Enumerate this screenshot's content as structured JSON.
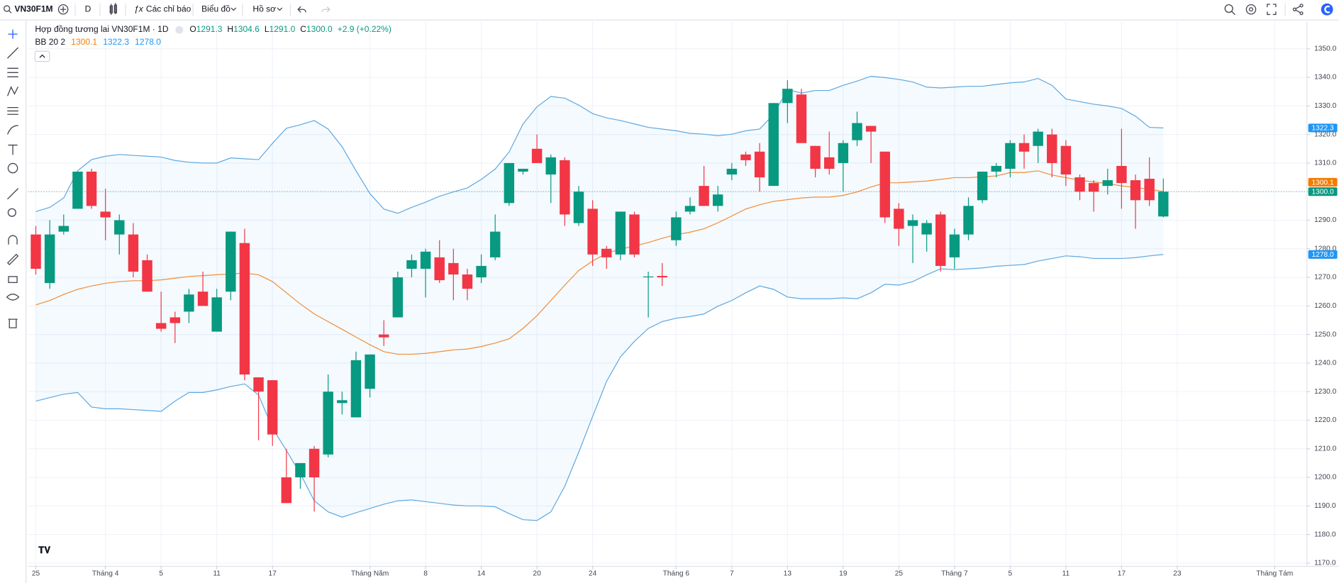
{
  "toolbar": {
    "symbol": "VN30F1M",
    "interval": "D",
    "indicators": "Các chỉ báo",
    "chart_menu": "Biểu đồ",
    "profile": "Hồ sơ"
  },
  "legend": {
    "title": "Hợp đồng tương lai VN30F1M · 1D",
    "ohlc_labels": [
      "O",
      "H",
      "L",
      "C"
    ],
    "ohlc_values": [
      "1291.3",
      "1304.6",
      "1291.0",
      "1300.0"
    ],
    "change": "+2.9 (+0.22%)",
    "bb_label": "BB 20 2",
    "bb_values": [
      "1300.1",
      "1322.3",
      "1278.0"
    ]
  },
  "chart_data": {
    "type": "candlestick",
    "up_color": "#089981",
    "down_color": "#f23645",
    "grid": true,
    "xlim": [
      -0.55,
      91.29
    ],
    "ylim": [
      1169,
      1359.6
    ],
    "xticks": [
      {
        "value": 0,
        "label": "25"
      },
      {
        "value": 5,
        "label": "Tháng 4"
      },
      {
        "value": 9,
        "label": "5"
      },
      {
        "value": 13,
        "label": "11"
      },
      {
        "value": 17,
        "label": "17"
      },
      {
        "value": 24,
        "label": "Tháng Năm"
      },
      {
        "value": 28,
        "label": "8"
      },
      {
        "value": 32,
        "label": "14"
      },
      {
        "value": 36,
        "label": "20"
      },
      {
        "value": 40,
        "label": "24"
      },
      {
        "value": 46,
        "label": "Tháng 6"
      },
      {
        "value": 50,
        "label": "7"
      },
      {
        "value": 54,
        "label": "13"
      },
      {
        "value": 58,
        "label": "19"
      },
      {
        "value": 62,
        "label": "25"
      },
      {
        "value": 66,
        "label": "Tháng 7"
      },
      {
        "value": 70,
        "label": "5"
      },
      {
        "value": 74,
        "label": "11"
      },
      {
        "value": 78,
        "label": "17"
      },
      {
        "value": 82,
        "label": "23"
      },
      {
        "value": 89,
        "label": "Tháng Tám"
      }
    ],
    "yticks": [
      {
        "value": 1170,
        "label": "1170.0"
      },
      {
        "value": 1180,
        "label": "1180.0"
      },
      {
        "value": 1190,
        "label": "1190.0"
      },
      {
        "value": 1200,
        "label": "1200.0"
      },
      {
        "value": 1210,
        "label": "1210.0"
      },
      {
        "value": 1220,
        "label": "1220.0"
      },
      {
        "value": 1230,
        "label": "1230.0"
      },
      {
        "value": 1240,
        "label": "1240.0"
      },
      {
        "value": 1250,
        "label": "1250.0"
      },
      {
        "value": 1260,
        "label": "1260.0"
      },
      {
        "value": 1270,
        "label": "1270.0"
      },
      {
        "value": 1280,
        "label": "1280.0"
      },
      {
        "value": 1290,
        "label": "1290.0"
      },
      {
        "value": 1300,
        "label": "1300.0"
      },
      {
        "value": 1310,
        "label": "1310.0"
      },
      {
        "value": 1320,
        "label": "1320.0"
      },
      {
        "value": 1330,
        "label": "1330.0"
      },
      {
        "value": 1340,
        "label": "1340.0"
      },
      {
        "value": 1350,
        "label": "1350.0"
      }
    ],
    "open": [
      1285,
      1268,
      1286,
      1294,
      1307,
      1293,
      1285,
      1285,
      1276,
      1254,
      1256,
      1258,
      1265,
      1251,
      1265,
      1282,
      1235,
      1234,
      1200,
      1200,
      1210,
      1208,
      1226,
      1221,
      1231,
      1250,
      1256,
      1273,
      1273,
      1277,
      1275,
      1271,
      1270,
      1277,
      1296,
      1307,
      1315,
      1306,
      1311,
      1289,
      1294,
      1280,
      1278,
      1292,
      1270,
      1270.5,
      1283,
      1293,
      1302,
      1295,
      1306,
      1313,
      1314,
      1302,
      1331,
      1334,
      1316,
      1312,
      1310,
      1318,
      1323,
      1314,
      1294,
      1288,
      1285,
      1292,
      1277,
      1285,
      1297,
      1307,
      1308,
      1317,
      1316,
      1320,
      1316,
      1305,
      1303,
      1302,
      1309,
      1304,
      1304.5,
      1291.3
    ],
    "high": [
      1288,
      1290,
      1292,
      1307,
      1308,
      1301,
      1292,
      1289,
      1278,
      1265,
      1258,
      1266,
      1272,
      1266,
      1286,
      1287,
      1235,
      1234,
      1210,
      1205,
      1211,
      1236,
      1230,
      1244,
      1243,
      1255,
      1272,
      1278,
      1280,
      1283,
      1280,
      1273,
      1278,
      1292,
      1310,
      1308,
      1320,
      1313,
      1312,
      1302,
      1297,
      1281,
      1293,
      1293,
      1272,
      1275,
      1293,
      1298,
      1309,
      1302,
      1310,
      1314,
      1317,
      1331,
      1339,
      1336,
      1316,
      1321,
      1318,
      1328,
      1323,
      1314,
      1296,
      1292,
      1290,
      1293,
      1287,
      1298,
      1307,
      1310,
      1318,
      1320,
      1322,
      1322,
      1318,
      1306,
      1304,
      1308,
      1322,
      1306,
      1312,
      1304.6
    ],
    "low": [
      1271,
      1266,
      1285,
      1294,
      1294,
      1283,
      1278,
      1270,
      1265,
      1251,
      1247,
      1254,
      1260,
      1251,
      1262,
      1234,
      1213,
      1211,
      1191,
      1196,
      1188,
      1207,
      1222,
      1221,
      1228,
      1246,
      1256,
      1270,
      1263,
      1268,
      1262,
      1262,
      1268,
      1276,
      1295,
      1306,
      1310,
      1296,
      1288,
      1288,
      1274,
      1273,
      1276,
      1277,
      1256,
      1267,
      1281,
      1292,
      1295,
      1293,
      1304,
      1309,
      1300,
      1302,
      1324,
      1317,
      1305,
      1306,
      1300,
      1316,
      1310,
      1289,
      1281,
      1275,
      1279,
      1272,
      1273,
      1283,
      1296,
      1305,
      1305,
      1308,
      1310,
      1305,
      1302,
      1297,
      1293,
      1299,
      1294,
      1287,
      1295,
      1291
    ],
    "close": [
      1273,
      1285,
      1288,
      1307,
      1295,
      1291,
      1290,
      1272,
      1265,
      1252,
      1254,
      1264,
      1260,
      1263,
      1286,
      1236,
      1230,
      1215,
      1191,
      1205,
      1200,
      1230,
      1227,
      1241,
      1243,
      1249,
      1270,
      1276,
      1279,
      1269,
      1271,
      1266,
      1274,
      1286,
      1310,
      1308,
      1310,
      1312,
      1292,
      1300,
      1278,
      1277,
      1293,
      1278,
      1270.3,
      1270,
      1291,
      1295,
      1295,
      1299,
      1308,
      1311,
      1305,
      1331,
      1336,
      1317,
      1308,
      1308,
      1317,
      1324,
      1321,
      1291,
      1287,
      1290,
      1289,
      1274,
      1285,
      1295,
      1307,
      1309,
      1317,
      1314,
      1321,
      1310,
      1306,
      1300,
      1300,
      1304,
      1303,
      1297,
      1297,
      1300
    ],
    "bollinger": {
      "band_color": "#5fa8e0",
      "middle_color": "#f28c38",
      "fill": "#2196f3",
      "upper": [
        1293,
        1294.5,
        1297.8,
        1307.3,
        1311.2,
        1312.4,
        1313,
        1312.7,
        1312.4,
        1312.1,
        1310.9,
        1310.3,
        1310,
        1310,
        1311.8,
        1311.5,
        1311.2,
        1316.9,
        1322.2,
        1323.4,
        1324.9,
        1321.9,
        1315.7,
        1307.3,
        1299.3,
        1293.9,
        1292.4,
        1294.5,
        1296.3,
        1298.4,
        1299.9,
        1301.3,
        1304.3,
        1307.9,
        1313.9,
        1323.7,
        1329.7,
        1333.3,
        1332.7,
        1330.3,
        1327.3,
        1325.8,
        1324.9,
        1323.7,
        1322.5,
        1321.9,
        1321.3,
        1320.4,
        1320.1,
        1319.6,
        1320.1,
        1321.3,
        1321.9,
        1327,
        1335.7,
        1334.5,
        1335.4,
        1335.4,
        1337.2,
        1338.7,
        1340.4,
        1339.9,
        1339.3,
        1338.4,
        1336.6,
        1336.3,
        1336.6,
        1336.9,
        1336.9,
        1337.5,
        1338.1,
        1338.4,
        1339.6,
        1337.2,
        1332.4,
        1331.5,
        1330.6,
        1330,
        1329.1,
        1326.4,
        1322.5,
        1322.3
      ],
      "middle": [
        1260.4,
        1261.9,
        1264,
        1265.8,
        1267,
        1267.9,
        1268.5,
        1268.8,
        1268.8,
        1269.1,
        1269.7,
        1270.3,
        1270.6,
        1270.9,
        1271.2,
        1271.5,
        1270.9,
        1268.5,
        1264.6,
        1260.7,
        1257.2,
        1254.5,
        1251.8,
        1249.1,
        1246.4,
        1244,
        1243.1,
        1243.1,
        1243.4,
        1244,
        1244.6,
        1244.9,
        1245.8,
        1247,
        1248.5,
        1252.1,
        1256.6,
        1261.9,
        1267.3,
        1272.4,
        1275.7,
        1278.4,
        1279.9,
        1281,
        1282.2,
        1283.7,
        1284.9,
        1285.8,
        1287,
        1289.1,
        1291.5,
        1293.9,
        1295.4,
        1296.6,
        1297.2,
        1297.8,
        1298.1,
        1298.1,
        1298.7,
        1299.9,
        1301.6,
        1303.1,
        1303.1,
        1303.4,
        1303.7,
        1304.3,
        1304.9,
        1304.9,
        1305.2,
        1305.5,
        1306.7,
        1306.7,
        1307.3,
        1305.8,
        1304.9,
        1304,
        1303.4,
        1302.8,
        1302,
        1301.5,
        1300.8,
        1300.1
      ],
      "lower": [
        1226.7,
        1227.9,
        1229.1,
        1229.7,
        1224.6,
        1224,
        1224,
        1223.7,
        1223.4,
        1223.1,
        1226.7,
        1229.7,
        1229.7,
        1230.6,
        1231.8,
        1232.7,
        1228.8,
        1217.2,
        1209.4,
        1201.3,
        1191.8,
        1187.9,
        1186.1,
        1187.6,
        1189.1,
        1190.6,
        1191.8,
        1192.1,
        1191.5,
        1190.9,
        1190.3,
        1190,
        1190,
        1189.7,
        1187.3,
        1185.2,
        1184.9,
        1187.9,
        1196.9,
        1208.8,
        1221.3,
        1233.6,
        1242.2,
        1247.6,
        1252.1,
        1254.5,
        1255.7,
        1256.3,
        1257.2,
        1259.9,
        1261.9,
        1264.6,
        1267,
        1265.8,
        1263.1,
        1262.5,
        1262.5,
        1262.5,
        1262.8,
        1262.5,
        1264.6,
        1267.6,
        1267.3,
        1268.5,
        1270.9,
        1273,
        1272.7,
        1273,
        1273.3,
        1273.9,
        1274.2,
        1274.5,
        1275.7,
        1276.6,
        1277.5,
        1277.2,
        1276.6,
        1276.6,
        1276.6,
        1276.9,
        1277.5,
        1278
      ]
    },
    "price_tags": [
      {
        "value": 1322.3,
        "label": "1322.3",
        "color": "#2196f3"
      },
      {
        "value": 1300.1,
        "label": "1300.1",
        "color": "#f57c00"
      },
      {
        "value": 1300.0,
        "label": "1300.0",
        "color": "#089981"
      },
      {
        "value": 1278.0,
        "label": "1278.0",
        "color": "#2196f3"
      }
    ]
  }
}
